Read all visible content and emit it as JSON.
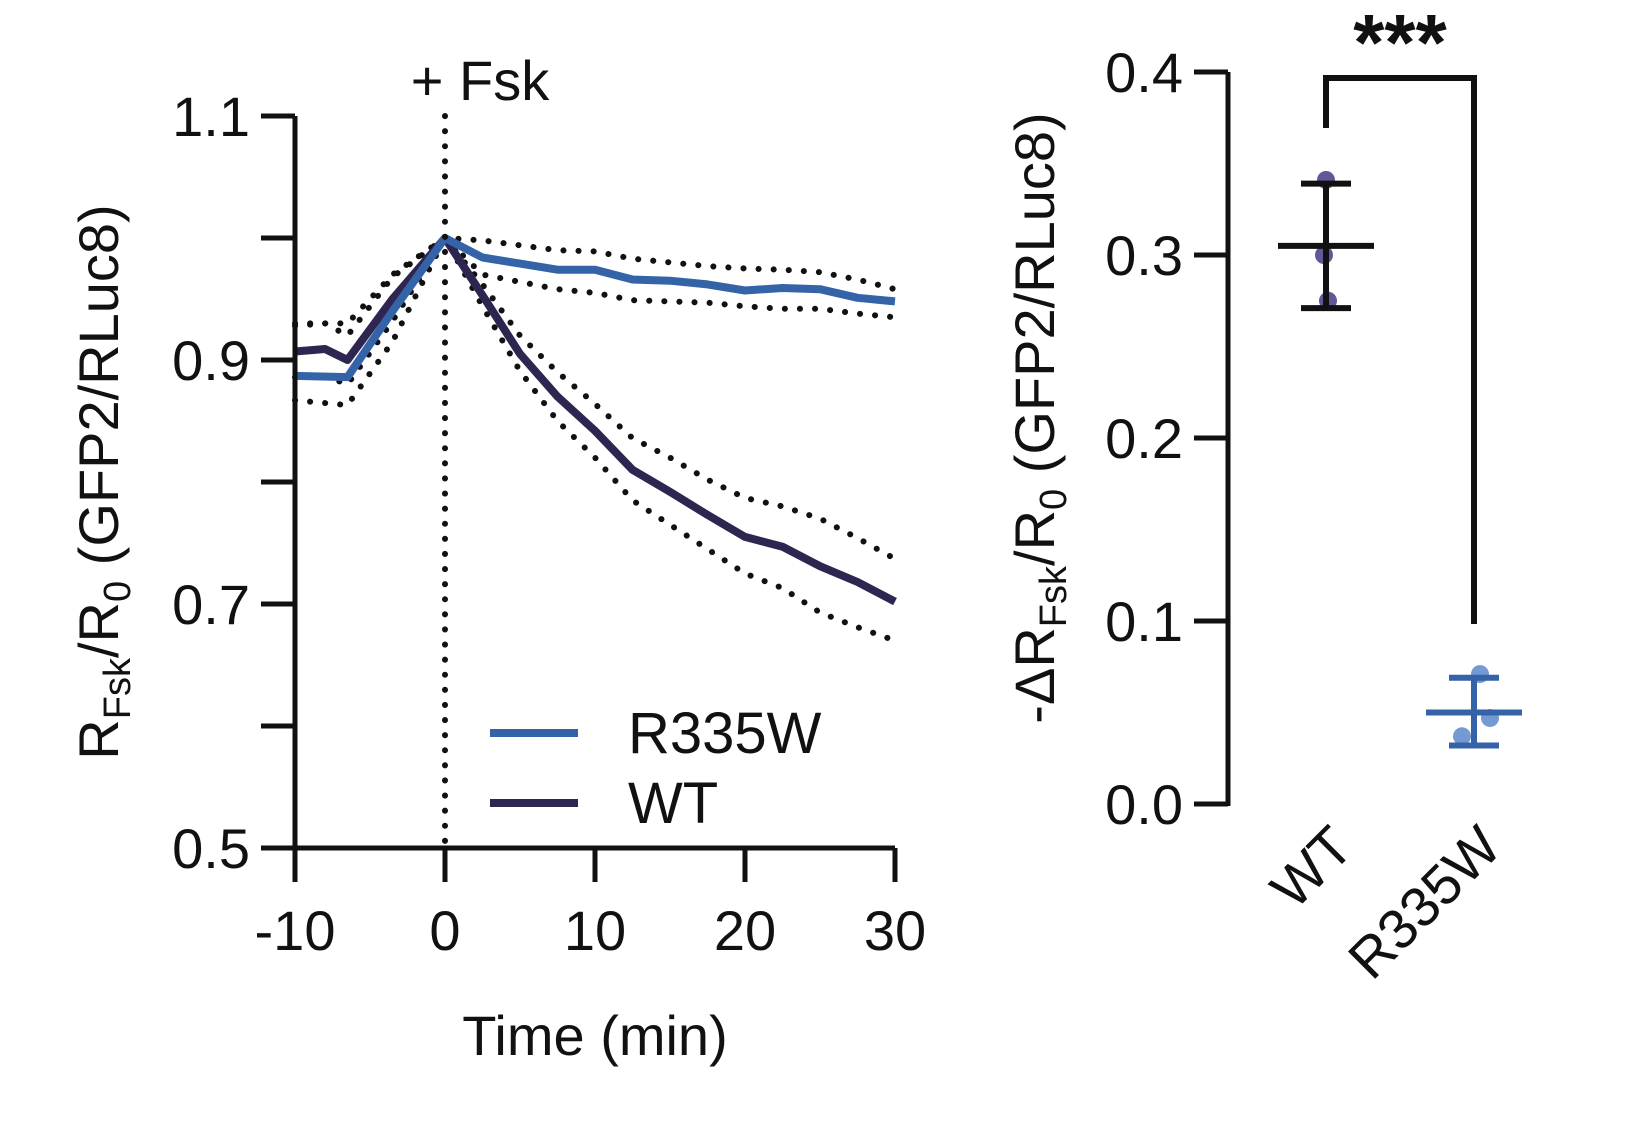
{
  "chart_data": [
    {
      "type": "line",
      "ylabel_parts": {
        "main": "R",
        "sub_main": "Fsk",
        "slash": "/R",
        "sub_zero": "0",
        "rest": " (GFP2/RLuc8)"
      },
      "xlabel": "Time (min)",
      "xlim": [
        -10,
        30
      ],
      "ylim": [
        0.5,
        1.1
      ],
      "x_ticks": [
        -10,
        0,
        10,
        20,
        30
      ],
      "x_tick_labels": [
        "-10",
        "0",
        "10",
        "20",
        "30"
      ],
      "y_ticks": [
        0.5,
        0.7,
        0.9,
        1.1
      ],
      "y_tick_labels": [
        "0.5",
        "0.7",
        "0.9",
        "1.1"
      ],
      "y_minor_ticks": [
        0.6,
        0.8,
        1.0
      ],
      "vline": {
        "x": 0,
        "label": "+ Fsk"
      },
      "series": [
        {
          "name": "R335W",
          "color": "#3563a8",
          "x": [
            -10,
            -6.5,
            -3.5,
            0,
            2.5,
            5,
            7.5,
            10,
            12.5,
            15,
            17.5,
            20,
            22.5,
            25,
            27.5,
            30
          ],
          "values": [
            0.887,
            0.886,
            0.94,
            1.0,
            0.984,
            0.979,
            0.974,
            0.974,
            0.966,
            0.965,
            0.962,
            0.957,
            0.959,
            0.958,
            0.951,
            0.948
          ],
          "ci_upper": [
            0.93,
            0.93,
            0.97,
            1.0,
            0.998,
            0.994,
            0.99,
            0.989,
            0.983,
            0.98,
            0.977,
            0.975,
            0.974,
            0.972,
            0.966,
            0.958
          ],
          "ci_lower": [
            0.867,
            0.863,
            0.915,
            1.0,
            0.97,
            0.964,
            0.958,
            0.955,
            0.949,
            0.948,
            0.947,
            0.944,
            0.942,
            0.942,
            0.938,
            0.935
          ]
        },
        {
          "name": "WT",
          "color": "#2e2650",
          "x": [
            -10,
            -8,
            -6.5,
            -3.5,
            0,
            2.5,
            5,
            7.5,
            10,
            12.5,
            15,
            17.5,
            20,
            22.5,
            25,
            27.5,
            30
          ],
          "values": [
            0.907,
            0.909,
            0.9,
            0.95,
            1.0,
            0.953,
            0.905,
            0.87,
            0.842,
            0.81,
            0.792,
            0.773,
            0.755,
            0.747,
            0.731,
            0.718,
            0.702
          ],
          "ci_upper": [
            0.928,
            0.93,
            0.92,
            0.968,
            1.0,
            0.962,
            0.92,
            0.89,
            0.864,
            0.836,
            0.82,
            0.802,
            0.787,
            0.78,
            0.77,
            0.754,
            0.737
          ],
          "ci_lower": [
            0.886,
            0.887,
            0.88,
            0.932,
            1.0,
            0.944,
            0.891,
            0.85,
            0.82,
            0.785,
            0.765,
            0.745,
            0.725,
            0.713,
            0.693,
            0.681,
            0.67
          ]
        }
      ],
      "legend": [
        {
          "name": "R335W",
          "color": "#3563a8"
        },
        {
          "name": "WT",
          "color": "#2e2650"
        }
      ]
    },
    {
      "type": "scatter",
      "ylabel_parts": {
        "prefix": "-ΔR",
        "sub_main": "Fsk",
        "slash": "/R",
        "sub_zero": "0",
        "rest": " (GFP2/RLuc8)"
      },
      "categories": [
        "WT",
        "R335W"
      ],
      "ylim": [
        0.0,
        0.4
      ],
      "y_ticks": [
        0.0,
        0.1,
        0.2,
        0.3,
        0.4
      ],
      "y_tick_labels": [
        "0.0",
        "0.1",
        "0.2",
        "0.3",
        "0.4"
      ],
      "groups": [
        {
          "name": "WT",
          "color": "#111111",
          "point_color": "#5b4f91",
          "mean": 0.305,
          "error_upper": 0.339,
          "error_lower": 0.271,
          "points": [
            0.341,
            0.3,
            0.275
          ]
        },
        {
          "name": "R335W",
          "color": "#3563a8",
          "point_color": "#6b95d0",
          "mean": 0.05,
          "error_upper": 0.069,
          "error_lower": 0.032,
          "points": [
            0.071,
            0.047,
            0.037
          ]
        }
      ],
      "significance": {
        "label": "***",
        "between": [
          "WT",
          "R335W"
        ]
      }
    }
  ]
}
